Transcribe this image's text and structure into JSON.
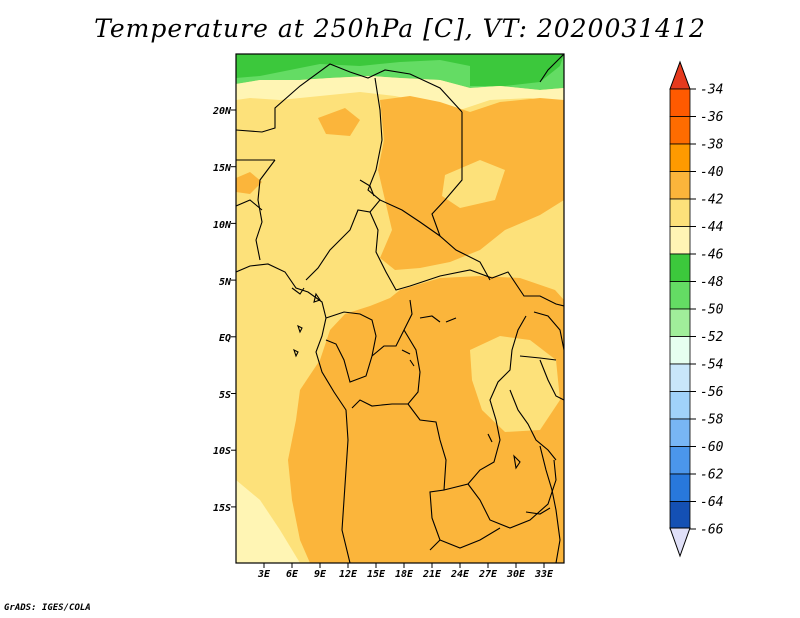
{
  "title": "Temperature at 250hPa [C], VT: 2020031412",
  "credit": "GrADS: IGES/COLA",
  "map": {
    "lon_ticks": [
      "3E",
      "6E",
      "9E",
      "12E",
      "15E",
      "18E",
      "21E",
      "24E",
      "27E",
      "30E",
      "33E"
    ],
    "lat_ticks": [
      "20N",
      "15N",
      "10N",
      "5N",
      "EQ",
      "5S",
      "10S",
      "15S"
    ]
  },
  "colorbar": {
    "levels": [
      "-34",
      "-36",
      "-38",
      "-40",
      "-42",
      "-44",
      "-46",
      "-48",
      "-50",
      "-52",
      "-54",
      "-56",
      "-58",
      "-60",
      "-62",
      "-64",
      "-66"
    ],
    "colors": [
      "#ff5a00",
      "#fe6c00",
      "#fe9a00",
      "#fbb53b",
      "#fde17a",
      "#fff5b4",
      "#3cc83c",
      "#64dc64",
      "#a0ee9a",
      "#e6fff0",
      "#c8e6fa",
      "#a0d2fa",
      "#78b6f5",
      "#4b96eb",
      "#2878dc",
      "#1450b4",
      "#0a2382"
    ],
    "top_cap": "#e63a1e",
    "bottom_cap": "#e0e0f8"
  }
}
